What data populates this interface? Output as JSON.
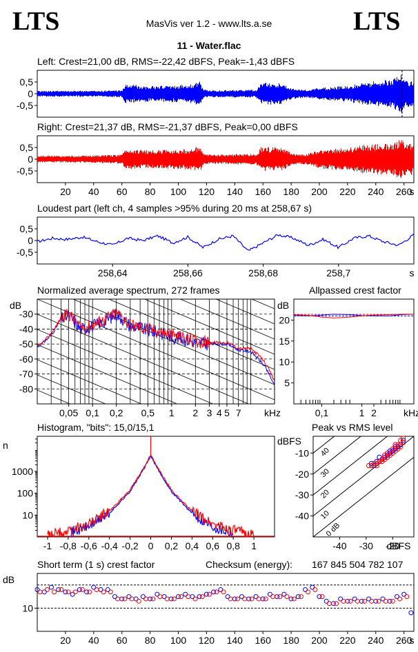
{
  "header": {
    "logo_left": "LTS",
    "logo_right": "LTS",
    "app_title": "MasVis ver 1.2 - www.lts.a.se",
    "file_title": "11 - Water.flac"
  },
  "colors": {
    "left": "#0000ff",
    "right": "#ff0000",
    "axis": "#000000",
    "grid": "#000000"
  },
  "chart_data": [
    {
      "id": "left-waveform",
      "type": "area",
      "title": "Left: Crest=21,00 dB, RMS=-22,42 dBFS, Peak=-1,43 dBFS",
      "y_ticks": [
        0.5,
        0,
        -0.5
      ],
      "y_tick_labels": [
        "0,5",
        "0",
        "-0,5"
      ],
      "ylim": [
        -1,
        1
      ],
      "xlim": [
        0,
        267
      ],
      "marker_x": 258.67,
      "series": [
        {
          "color": "#0000ff",
          "x": [
            0,
            10,
            20,
            30,
            40,
            50,
            60,
            62,
            70,
            80,
            90,
            100,
            110,
            115,
            118,
            120,
            130,
            140,
            150,
            155,
            158,
            160,
            170,
            175,
            180,
            185,
            190,
            195,
            200,
            210,
            220,
            230,
            240,
            250,
            258,
            260,
            267
          ],
          "amplitude": [
            0.12,
            0.13,
            0.12,
            0.13,
            0.12,
            0.14,
            0.16,
            0.4,
            0.38,
            0.33,
            0.35,
            0.37,
            0.42,
            0.52,
            0.18,
            0.16,
            0.15,
            0.16,
            0.17,
            0.17,
            0.42,
            0.48,
            0.46,
            0.42,
            0.22,
            0.2,
            0.18,
            0.2,
            0.25,
            0.3,
            0.35,
            0.45,
            0.55,
            0.6,
            0.88,
            0.6,
            0.55
          ]
        }
      ]
    },
    {
      "id": "right-waveform",
      "type": "area",
      "title": "Right: Crest=21,37 dB, RMS=-21,37 dBFS, Peak=0,00 dBFS",
      "y_ticks": [
        0.5,
        0,
        -0.5
      ],
      "y_tick_labels": [
        "0,5",
        "0",
        "-0,5"
      ],
      "ylim": [
        -1,
        1
      ],
      "xlim": [
        0,
        267
      ],
      "x_ticks": [
        20,
        40,
        60,
        80,
        100,
        120,
        140,
        160,
        180,
        200,
        220,
        240,
        260
      ],
      "x_tick_labels": [
        "20",
        "40",
        "60",
        "80",
        "100",
        "120",
        "140",
        "160",
        "180",
        "200",
        "220",
        "240",
        "260"
      ],
      "x_unit": "s",
      "series": [
        {
          "color": "#ff0000",
          "x": [
            0,
            10,
            20,
            30,
            40,
            50,
            60,
            62,
            70,
            80,
            90,
            100,
            110,
            115,
            118,
            120,
            130,
            140,
            150,
            155,
            158,
            160,
            170,
            175,
            180,
            185,
            190,
            195,
            200,
            210,
            220,
            230,
            240,
            250,
            258,
            260,
            267
          ],
          "amplitude": [
            0.14,
            0.15,
            0.14,
            0.15,
            0.16,
            0.18,
            0.2,
            0.45,
            0.42,
            0.38,
            0.4,
            0.42,
            0.45,
            0.6,
            0.22,
            0.2,
            0.2,
            0.22,
            0.23,
            0.22,
            0.5,
            0.55,
            0.5,
            0.45,
            0.25,
            0.22,
            0.22,
            0.3,
            0.4,
            0.45,
            0.5,
            0.6,
            0.65,
            0.7,
            0.85,
            0.75,
            0.65
          ]
        }
      ]
    },
    {
      "id": "loudest-part",
      "type": "line",
      "title": "Loudest part (left  ch, 4 samples >95% during 20 ms at 258,67 s)",
      "y_ticks": [
        0.5,
        0,
        -0.5
      ],
      "y_tick_labels": [
        "0,5",
        "0",
        "-0,5"
      ],
      "ylim": [
        -1,
        1
      ],
      "xlim": [
        258.62,
        258.72
      ],
      "x_ticks": [
        258.64,
        258.66,
        258.68,
        258.7
      ],
      "x_tick_labels": [
        "258,64",
        "258,66",
        "258,68",
        "258,7"
      ],
      "x_unit": "s",
      "series": [
        {
          "color": "#0000ff",
          "x": [
            258.62,
            258.624,
            258.628,
            258.632,
            258.636,
            258.64,
            258.644,
            258.648,
            258.652,
            258.656,
            258.66,
            258.664,
            258.668,
            258.672,
            258.676,
            258.68,
            258.684,
            258.688,
            258.692,
            258.696,
            258.7,
            258.704,
            258.708,
            258.712,
            258.716,
            258.72
          ],
          "y": [
            -0.05,
            0.1,
            0.05,
            0.15,
            -0.05,
            -0.2,
            0.1,
            0.0,
            0.2,
            -0.1,
            0.15,
            -0.3,
            0.05,
            0.2,
            -0.45,
            -0.1,
            0.25,
            0.1,
            -0.2,
            0.05,
            -0.3,
            0.1,
            0.2,
            -0.05,
            -0.2,
            0.25
          ]
        }
      ]
    },
    {
      "id": "avg-spectrum",
      "type": "line",
      "title": "Normalized average spectrum, 272 frames",
      "ylabel": "dB",
      "x_unit": "kHz",
      "x_scale": "log",
      "xlim": [
        0.02,
        20
      ],
      "ylim": [
        -90,
        -20
      ],
      "y_ticks": [
        -30,
        -40,
        -50,
        -60,
        -70,
        -80
      ],
      "y_tick_labels": [
        "-30",
        "-40",
        "-50",
        "-60",
        "-70",
        "-80"
      ],
      "x_ticks": [
        0.05,
        0.1,
        0.2,
        0.5,
        1,
        2,
        3,
        4,
        5,
        7
      ],
      "x_tick_labels": [
        "0,05",
        "0,1",
        "0,2",
        "0,5",
        "1",
        "2",
        "3",
        "4",
        "5",
        "7"
      ],
      "series": [
        {
          "color": "#0000ff",
          "x": [
            0.02,
            0.03,
            0.04,
            0.05,
            0.07,
            0.1,
            0.15,
            0.2,
            0.3,
            0.5,
            1,
            2,
            3,
            5,
            7,
            10,
            15,
            20
          ],
          "y": [
            -52,
            -44,
            -33,
            -31,
            -40,
            -38,
            -34,
            -30,
            -38,
            -41,
            -45,
            -49,
            -50,
            -50,
            -54,
            -55,
            -65,
            -78
          ]
        },
        {
          "color": "#ff0000",
          "x": [
            0.02,
            0.03,
            0.04,
            0.05,
            0.07,
            0.1,
            0.15,
            0.2,
            0.3,
            0.5,
            1,
            2,
            3,
            5,
            7,
            10,
            15,
            20
          ],
          "y": [
            -52,
            -43,
            -32,
            -30,
            -39,
            -37,
            -33,
            -29,
            -37,
            -40,
            -44,
            -48,
            -49,
            -49,
            -53,
            -53,
            -62,
            -75
          ]
        }
      ]
    },
    {
      "id": "allpassed-crest",
      "type": "line",
      "title": "Allpassed crest factor",
      "ylabel": "dB",
      "x_unit": "kHz",
      "x_scale": "log",
      "xlim": [
        0.02,
        20
      ],
      "ylim": [
        0,
        25
      ],
      "y_ticks": [
        20,
        15,
        10,
        5
      ],
      "y_tick_labels": [
        "20",
        "15",
        "10",
        "5"
      ],
      "x_ticks": [
        0.1,
        1,
        2
      ],
      "x_tick_labels": [
        "0,1",
        "1",
        "2"
      ],
      "series": [
        {
          "color": "#0000ff",
          "x": [
            0.02,
            0.05,
            0.1,
            0.2,
            0.5,
            1,
            2,
            5,
            10,
            20
          ],
          "y": [
            21.1,
            21.0,
            21.2,
            21.4,
            21.3,
            21.1,
            21.0,
            21.0,
            21.3,
            21.4
          ]
        },
        {
          "color": "#ff0000",
          "x": [
            0.02,
            0.05,
            0.1,
            0.2,
            0.5,
            1,
            2,
            5,
            10,
            20
          ],
          "y": [
            21.3,
            21.1,
            20.7,
            20.5,
            20.7,
            21.0,
            21.2,
            21.3,
            21.4,
            21.4
          ]
        }
      ],
      "reference_lines": [
        21.0,
        21.37
      ]
    },
    {
      "id": "histogram",
      "type": "line",
      "title": "Histogram, \"bits\": 15,0/15,1",
      "ylabel": "n",
      "y_scale": "log",
      "xlim": [
        -1.1,
        1.2
      ],
      "ylim": [
        1,
        40000
      ],
      "y_ticks": [
        10,
        100,
        1000
      ],
      "y_tick_labels": [
        "10",
        "100",
        "1000"
      ],
      "x_ticks": [
        -1,
        -0.8,
        -0.6,
        -0.4,
        -0.2,
        0,
        0.2,
        0.4,
        0.6,
        0.8,
        1
      ],
      "x_tick_labels": [
        "-1",
        "-0,8",
        "-0,6",
        "-0,4",
        "-0,2",
        "0",
        "0,2",
        "0,4",
        "0,6",
        "0,8",
        "1"
      ],
      "series": [
        {
          "color": "#0000ff",
          "x": [
            -0.8,
            -0.6,
            -0.4,
            -0.2,
            -0.1,
            -0.05,
            0,
            0.05,
            0.1,
            0.2,
            0.4,
            0.6,
            0.8
          ],
          "y": [
            1.5,
            3,
            12,
            120,
            700,
            1800,
            5000,
            1800,
            700,
            120,
            12,
            3,
            1.5
          ]
        },
        {
          "color": "#ff0000",
          "x": [
            -1,
            -0.8,
            -0.6,
            -0.4,
            -0.2,
            -0.1,
            -0.05,
            0,
            0.05,
            0.1,
            0.2,
            0.4,
            0.6,
            0.8,
            1
          ],
          "y": [
            1.2,
            1.8,
            4,
            15,
            140,
            800,
            2000,
            6000,
            2000,
            800,
            140,
            15,
            4,
            2,
            1.2
          ]
        }
      ]
    },
    {
      "id": "peak-vs-rms",
      "type": "scatter",
      "title": "Peak vs RMS level",
      "ylabel": "dBFS",
      "xlabel": "dBFS",
      "xlim": [
        -50,
        -12
      ],
      "ylim": [
        -50,
        -2
      ],
      "x_ticks": [
        -40,
        -30,
        -20
      ],
      "x_tick_labels": [
        "-40",
        "-30",
        "-20"
      ],
      "y_ticks": [
        -10,
        -20,
        -30,
        -40
      ],
      "y_tick_labels": [
        "-10",
        "-20",
        "-30",
        "-40"
      ],
      "diagonal_labels": [
        "40",
        "30",
        "20",
        "10",
        "0 dB"
      ],
      "series": [
        {
          "color": "#0000ff",
          "x": [
            -28,
            -26,
            -25,
            -24,
            -23,
            -22,
            -21,
            -20,
            -19,
            -18,
            -17,
            -27,
            -25,
            -21,
            -19,
            -16
          ],
          "y": [
            -15,
            -14,
            -14,
            -13,
            -12,
            -11,
            -10,
            -9,
            -8,
            -7,
            -6,
            -16,
            -12,
            -9,
            -7,
            -4
          ]
        },
        {
          "color": "#ff0000",
          "x": [
            -29,
            -28,
            -27,
            -26,
            -25,
            -24,
            -23,
            -22,
            -21,
            -20,
            -19,
            -18,
            -17,
            -16,
            -26,
            -24,
            -22,
            -20,
            -18,
            -17,
            -16,
            -23,
            -19
          ],
          "y": [
            -16,
            -16,
            -15,
            -15,
            -14,
            -13,
            -13,
            -12,
            -11,
            -10,
            -9,
            -8,
            -7,
            -5,
            -16,
            -14,
            -10,
            -8,
            -6,
            -4,
            -3,
            -11,
            -6
          ]
        }
      ]
    },
    {
      "id": "short-term-crest",
      "type": "scatter",
      "title": "Short term (1 s) crest factor",
      "ylabel": "dB",
      "xlim": [
        0,
        267
      ],
      "ylim": [
        0,
        25
      ],
      "y_ticks": [
        10
      ],
      "y_tick_labels": [
        "10"
      ],
      "x_ticks": [
        20,
        40,
        60,
        80,
        100,
        120,
        140,
        160,
        180,
        200,
        220,
        240,
        260
      ],
      "x_tick_labels": [
        "20",
        "40",
        "60",
        "80",
        "100",
        "120",
        "140",
        "160",
        "180",
        "200",
        "220",
        "240",
        "260"
      ],
      "x_unit": "s",
      "dashed_lines": [
        10,
        20
      ],
      "series": [
        {
          "color": "#0000ff",
          "x": [
            0,
            5,
            10,
            15,
            20,
            25,
            30,
            35,
            40,
            45,
            50,
            55,
            60,
            65,
            70,
            75,
            80,
            85,
            90,
            95,
            100,
            105,
            110,
            115,
            120,
            125,
            130,
            135,
            140,
            145,
            150,
            155,
            160,
            165,
            170,
            175,
            180,
            185,
            190,
            195,
            200,
            205,
            210,
            215,
            220,
            225,
            230,
            235,
            240,
            245,
            250,
            255,
            260,
            265
          ],
          "y": [
            18,
            17,
            19,
            18,
            17,
            16,
            18,
            17,
            19,
            18,
            18,
            15,
            14,
            15,
            14,
            15,
            14,
            16,
            15,
            14,
            15,
            16,
            15,
            15,
            16,
            17,
            18,
            15,
            14,
            15,
            14,
            15,
            14,
            16,
            15,
            16,
            14,
            15,
            18,
            19,
            15,
            13,
            12,
            14,
            13,
            14,
            13,
            14,
            13,
            14,
            13,
            15,
            16,
            8
          ]
        },
        {
          "color": "#ff0000",
          "x": [
            2,
            7,
            12,
            17,
            22,
            27,
            32,
            37,
            42,
            47,
            52,
            57,
            62,
            67,
            72,
            77,
            82,
            87,
            92,
            97,
            102,
            107,
            112,
            117,
            122,
            127,
            132,
            137,
            142,
            147,
            152,
            157,
            162,
            167,
            172,
            177,
            182,
            187,
            192,
            197,
            202,
            207,
            212,
            217,
            222,
            227,
            232,
            237,
            242,
            247,
            252,
            257,
            262
          ],
          "y": [
            17,
            18,
            17,
            18,
            17,
            17,
            18,
            17,
            18,
            17,
            17,
            14,
            14,
            14,
            13,
            14,
            14,
            15,
            14,
            14,
            15,
            15,
            14,
            15,
            16,
            17,
            17,
            14,
            14,
            14,
            14,
            14,
            14,
            15,
            15,
            15,
            14,
            15,
            17,
            18,
            15,
            12,
            12,
            13,
            13,
            13,
            13,
            13,
            13,
            13,
            13,
            14,
            15
          ]
        }
      ]
    }
  ],
  "checksum": {
    "label": "Checksum (energy):",
    "value": "167 845 504 782 107"
  }
}
